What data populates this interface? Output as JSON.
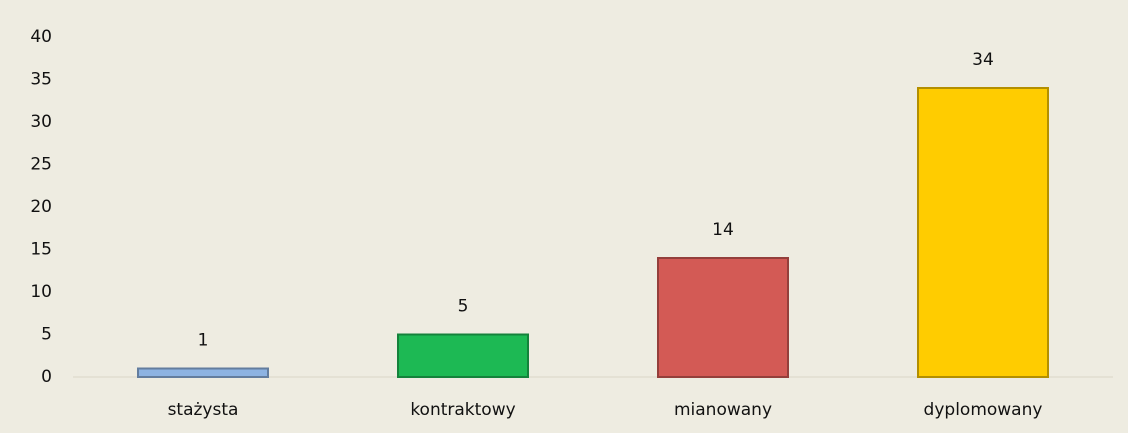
{
  "chart_data": {
    "type": "bar",
    "categories": [
      "stażysta",
      "kontraktowy",
      "mianowany",
      "dyplomowany"
    ],
    "values": [
      1,
      5,
      14,
      34
    ],
    "colors": [
      "#8db3e2",
      "#1db954",
      "#d35a55",
      "#ffcc00"
    ],
    "ylim": [
      0,
      40
    ],
    "yticks": [
      0,
      5,
      10,
      15,
      20,
      25,
      30,
      35,
      40
    ],
    "grid": false
  }
}
